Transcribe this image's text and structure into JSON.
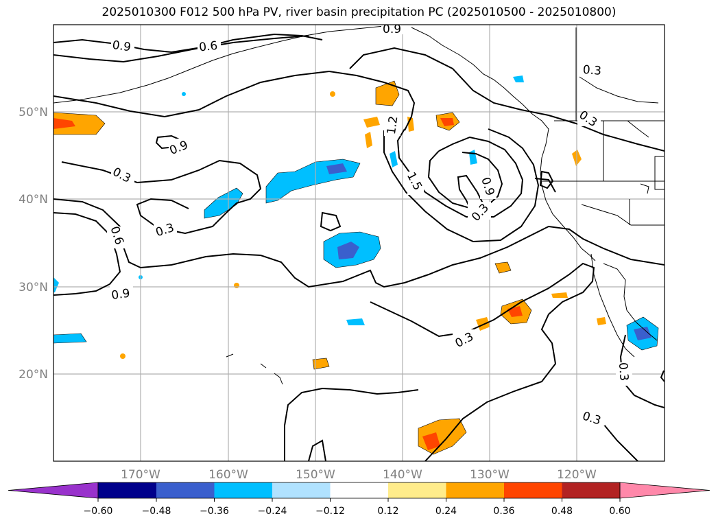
{
  "title": "2025010300 F012 500 hPa PV, river basin precipitation PC (2025010500 - 2025010800)",
  "map": {
    "lon_labels": [
      "170°W",
      "160°W",
      "150°W",
      "140°W",
      "130°W",
      "120°W"
    ],
    "lat_labels": [
      "50°N",
      "40°N",
      "30°N",
      "20°N"
    ],
    "contour_labels": [
      "0.9",
      "0.6",
      "0.9",
      "0.3",
      "0.9",
      "0.3",
      "0.3",
      "0.6",
      "0.9",
      "0.3",
      "1.2",
      "1.5",
      "0.9",
      "0.3",
      "0.3",
      "0.3",
      "0.3"
    ],
    "colors": {
      "coast": "#000000",
      "grid": "#b0b0b0",
      "axis_label": "#808080"
    }
  },
  "colorbar": {
    "ticks": [
      "−0.60",
      "−0.48",
      "−0.36",
      "−0.24",
      "−0.12",
      "0.12",
      "0.24",
      "0.36",
      "0.48",
      "0.60"
    ],
    "colors": [
      "#9932cc",
      "#00008b",
      "#3a5fcd",
      "#00bfff",
      "#b0e2ff",
      "#ffffff",
      "#ffec8b",
      "#ffa500",
      "#ff4500",
      "#b22222",
      "#ff88aa"
    ]
  }
}
